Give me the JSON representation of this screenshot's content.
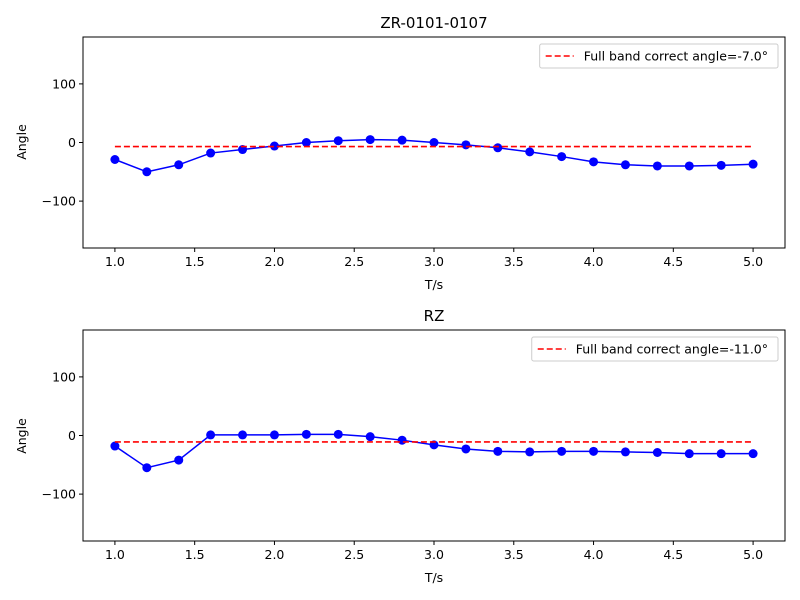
{
  "chart_data": [
    {
      "type": "line",
      "title": "ZR-0101-0107",
      "xlabel": "T/s",
      "ylabel": "Angle",
      "xlim": [
        0.8,
        5.2
      ],
      "ylim": [
        -180,
        180
      ],
      "xticks": [
        1.0,
        1.5,
        2.0,
        2.5,
        3.0,
        3.5,
        4.0,
        4.5,
        5.0
      ],
      "xtick_labels": [
        "1.0",
        "1.5",
        "2.0",
        "2.5",
        "3.0",
        "3.5",
        "4.0",
        "4.5",
        "5.0"
      ],
      "yticks": [
        -100,
        0,
        100
      ],
      "ytick_labels": [
        "−100",
        "0",
        "100"
      ],
      "grid": false,
      "legend_position": "upper-right",
      "series": [
        {
          "kind": "markers-line",
          "color": "#0000ff",
          "x": [
            1.0,
            1.2,
            1.4,
            1.6,
            1.8,
            2.0,
            2.2,
            2.4,
            2.6,
            2.8,
            3.0,
            3.2,
            3.4,
            3.6,
            3.8,
            4.0,
            4.2,
            4.4,
            4.6,
            4.8,
            5.0
          ],
          "y": [
            -29,
            -50,
            -38,
            -18,
            -12,
            -6,
            0,
            3,
            5,
            4,
            0,
            -4,
            -9,
            -16,
            -24,
            -33,
            -38,
            -40,
            -40,
            -39,
            -37
          ]
        },
        {
          "kind": "dashed-line",
          "name": "Full band correct angle=-7.0°",
          "color": "#ff0000",
          "x": [
            1.0,
            5.0
          ],
          "y": [
            -7.0,
            -7.0
          ]
        }
      ]
    },
    {
      "type": "line",
      "title": "RZ",
      "xlabel": "T/s",
      "ylabel": "Angle",
      "xlim": [
        0.8,
        5.2
      ],
      "ylim": [
        -180,
        180
      ],
      "xticks": [
        1.0,
        1.5,
        2.0,
        2.5,
        3.0,
        3.5,
        4.0,
        4.5,
        5.0
      ],
      "xtick_labels": [
        "1.0",
        "1.5",
        "2.0",
        "2.5",
        "3.0",
        "3.5",
        "4.0",
        "4.5",
        "5.0"
      ],
      "yticks": [
        -100,
        0,
        100
      ],
      "ytick_labels": [
        "−100",
        "0",
        "100"
      ],
      "grid": false,
      "legend_position": "upper-right",
      "series": [
        {
          "kind": "markers-line",
          "color": "#0000ff",
          "x": [
            1.0,
            1.2,
            1.4,
            1.6,
            1.8,
            2.0,
            2.2,
            2.4,
            2.6,
            2.8,
            3.0,
            3.2,
            3.4,
            3.6,
            3.8,
            4.0,
            4.2,
            4.4,
            4.6,
            4.8,
            5.0
          ],
          "y": [
            -18,
            -55,
            -42,
            1,
            1,
            1,
            2,
            2,
            -2,
            -8,
            -16,
            -23,
            -27,
            -28,
            -27,
            -27,
            -28,
            -29,
            -31,
            -31,
            -31
          ]
        },
        {
          "kind": "dashed-line",
          "name": "Full band correct angle=-11.0°",
          "color": "#ff0000",
          "x": [
            1.0,
            5.0
          ],
          "y": [
            -11.0,
            -11.0
          ]
        }
      ]
    }
  ]
}
